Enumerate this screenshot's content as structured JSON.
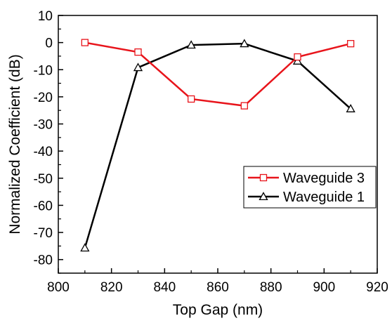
{
  "chart_data": {
    "type": "line",
    "xlabel": "Top Gap (nm)",
    "ylabel": "Normalized Coefficient (dB)",
    "xlim": [
      800,
      920
    ],
    "ylim": [
      -85,
      10
    ],
    "xticks": [
      800,
      820,
      840,
      860,
      880,
      900,
      920
    ],
    "yticks": [
      10,
      0,
      -10,
      -20,
      -30,
      -40,
      -50,
      -60,
      -70,
      -80
    ],
    "grid": false,
    "legend_position": "center-right",
    "x": [
      810,
      830,
      850,
      870,
      890,
      910
    ],
    "series": [
      {
        "name": "Waveguide 3",
        "color": "#e8141b",
        "marker": "square-open",
        "values": [
          0,
          -3.5,
          -20.8,
          -23.3,
          -5.3,
          -0.4
        ]
      },
      {
        "name": "Waveguide 1",
        "color": "#000000",
        "marker": "triangle-open",
        "values": [
          -75.7,
          -9.2,
          -0.9,
          -0.4,
          -6.8,
          -24.4
        ]
      }
    ]
  }
}
